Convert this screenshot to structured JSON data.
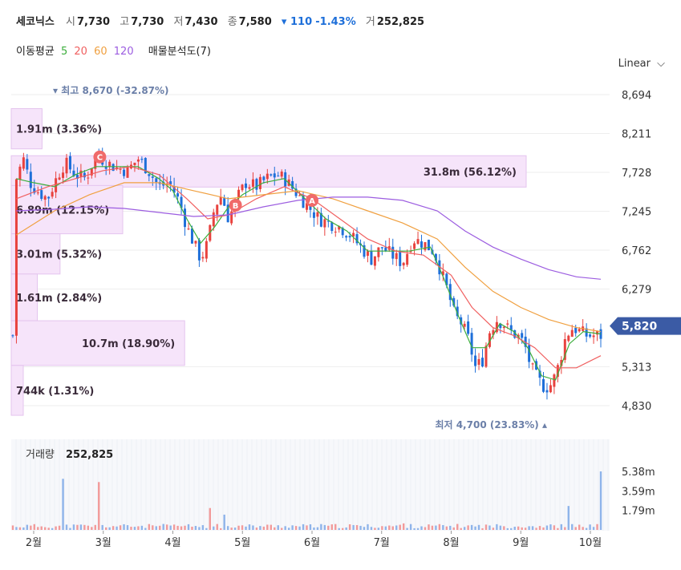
{
  "stock": {
    "name": "세코닉스",
    "open_label": "시",
    "open": "7,730",
    "high_label": "고",
    "high": "7,730",
    "low_label": "저",
    "low": "7,430",
    "close_label": "종",
    "close": "7,580",
    "change": "▾ 110",
    "change_pct": "-1.43%",
    "volume_label": "거",
    "volume": "252,825"
  },
  "indicators": {
    "ma_label": "이동평균",
    "ma5": "5",
    "ma20": "20",
    "ma60": "60",
    "ma120": "120",
    "profile_label": "매물분석도(7)"
  },
  "scale_button": "Linear",
  "colors": {
    "up": "#e8423e",
    "down": "#1e6fd9",
    "ma5": "#3cae3c",
    "ma20": "#f06060",
    "ma60": "#f0a040",
    "ma120": "#9c5de0",
    "profile": "#f6e4fa",
    "price_tag": "#3b5ba5"
  },
  "chart_data": {
    "type": "candlestick",
    "price_axis": {
      "ticks": [
        8694,
        8211,
        7728,
        7245,
        6762,
        6279,
        5313,
        4830
      ],
      "tick_labels": [
        "8,694",
        "8,211",
        "7,728",
        "7,245",
        "6,762",
        "6,279",
        "5,313",
        "4,830"
      ]
    },
    "current_price": {
      "value": 5820,
      "label": "5,820"
    },
    "high_annotation": "▾ 최고 8,670 (-32.87%)",
    "low_annotation": "최저 4,700 (23.83%) ▴",
    "markers": [
      {
        "label": "C",
        "x": 2.95,
        "price": 7920
      },
      {
        "label": "B",
        "x": 4.9,
        "price": 7320
      },
      {
        "label": "A",
        "x": 6.0,
        "price": 7380
      }
    ],
    "volume_profile": [
      {
        "price_low": 8020,
        "price_high": 8520,
        "volume": "1.91m",
        "pct": 3.36
      },
      {
        "price_low": 7545,
        "price_high": 7935,
        "volume": "31.8m",
        "pct": 56.12
      },
      {
        "price_low": 6965,
        "price_high": 7565,
        "volume": "6.89m",
        "pct": 12.15
      },
      {
        "price_low": 6465,
        "price_high": 6965,
        "volume": "3.01m",
        "pct": 5.32
      },
      {
        "price_low": 5885,
        "price_high": 6465,
        "volume": "1.61m",
        "pct": 2.84
      },
      {
        "price_low": 5330,
        "price_high": 5885,
        "volume": "10.7m",
        "pct": 18.9
      },
      {
        "price_low": 4710,
        "price_high": 5330,
        "volume": "744k",
        "pct": 1.31
      }
    ],
    "months": [
      "2월",
      "3월",
      "4월",
      "5월",
      "6월",
      "7월",
      "8월",
      "9월",
      "10월"
    ],
    "volume_panel": {
      "label": "거래량",
      "value": "252,825",
      "ticks": [
        1.79,
        3.59,
        5.38
      ],
      "tick_labels": [
        "1.79m",
        "3.59m",
        "5.38m"
      ]
    },
    "x_range": [
      1.7,
      10.4
    ],
    "y_range": [
      4700,
      8800
    ],
    "price_path": [
      [
        1.75,
        7650
      ],
      [
        1.85,
        7900
      ],
      [
        1.95,
        7600
      ],
      [
        2.05,
        7500
      ],
      [
        2.2,
        7400
      ],
      [
        2.35,
        7700
      ],
      [
        2.45,
        7850
      ],
      [
        2.6,
        7700
      ],
      [
        2.75,
        7650
      ],
      [
        2.9,
        7950
      ],
      [
        3.05,
        7850
      ],
      [
        3.2,
        7780
      ],
      [
        3.35,
        7750
      ],
      [
        3.5,
        7900
      ],
      [
        3.65,
        7750
      ],
      [
        3.8,
        7550
      ],
      [
        3.95,
        7600
      ],
      [
        4.1,
        7350
      ],
      [
        4.2,
        7050
      ],
      [
        4.3,
        6850
      ],
      [
        4.4,
        6650
      ],
      [
        4.5,
        6850
      ],
      [
        4.6,
        7300
      ],
      [
        4.7,
        7450
      ],
      [
        4.8,
        7150
      ],
      [
        4.95,
        7450
      ],
      [
        5.05,
        7600
      ],
      [
        5.2,
        7550
      ],
      [
        5.35,
        7650
      ],
      [
        5.5,
        7700
      ],
      [
        5.6,
        7650
      ],
      [
        5.7,
        7550
      ],
      [
        5.8,
        7450
      ],
      [
        5.95,
        7300
      ],
      [
        6.1,
        7150
      ],
      [
        6.25,
        7100
      ],
      [
        6.4,
        7050
      ],
      [
        6.55,
        6950
      ],
      [
        6.7,
        6800
      ],
      [
        6.85,
        6650
      ],
      [
        7.0,
        6800
      ],
      [
        7.15,
        6700
      ],
      [
        7.3,
        6600
      ],
      [
        7.45,
        6900
      ],
      [
        7.6,
        6850
      ],
      [
        7.75,
        6750
      ],
      [
        7.85,
        6500
      ],
      [
        7.95,
        6250
      ],
      [
        8.05,
        5950
      ],
      [
        8.15,
        5850
      ],
      [
        8.25,
        5650
      ],
      [
        8.35,
        5300
      ],
      [
        8.45,
        5400
      ],
      [
        8.55,
        5750
      ],
      [
        8.65,
        5900
      ],
      [
        8.75,
        5850
      ],
      [
        8.85,
        5750
      ],
      [
        8.95,
        5700
      ],
      [
        9.05,
        5600
      ],
      [
        9.15,
        5300
      ],
      [
        9.25,
        5150
      ],
      [
        9.35,
        5050
      ],
      [
        9.45,
        5100
      ],
      [
        9.55,
        5350
      ],
      [
        9.65,
        5700
      ],
      [
        9.75,
        5800
      ],
      [
        9.85,
        5750
      ],
      [
        9.95,
        5700
      ],
      [
        10.15,
        5700
      ]
    ],
    "ma5": [
      [
        1.75,
        7650
      ],
      [
        2.0,
        7600
      ],
      [
        2.3,
        7550
      ],
      [
        2.6,
        7700
      ],
      [
        2.9,
        7800
      ],
      [
        3.2,
        7800
      ],
      [
        3.5,
        7800
      ],
      [
        3.8,
        7650
      ],
      [
        4.0,
        7500
      ],
      [
        4.2,
        7150
      ],
      [
        4.4,
        6850
      ],
      [
        4.6,
        7050
      ],
      [
        4.8,
        7300
      ],
      [
        5.0,
        7450
      ],
      [
        5.3,
        7600
      ],
      [
        5.6,
        7650
      ],
      [
        5.9,
        7400
      ],
      [
        6.2,
        7150
      ],
      [
        6.5,
        7000
      ],
      [
        6.8,
        6750
      ],
      [
        7.1,
        6750
      ],
      [
        7.4,
        6750
      ],
      [
        7.7,
        6800
      ],
      [
        7.9,
        6400
      ],
      [
        8.1,
        5950
      ],
      [
        8.3,
        5550
      ],
      [
        8.5,
        5550
      ],
      [
        8.7,
        5850
      ],
      [
        8.9,
        5750
      ],
      [
        9.1,
        5550
      ],
      [
        9.3,
        5200
      ],
      [
        9.5,
        5150
      ],
      [
        9.7,
        5600
      ],
      [
        9.9,
        5750
      ],
      [
        10.15,
        5720
      ]
    ],
    "ma20": [
      [
        1.75,
        7400
      ],
      [
        2.2,
        7550
      ],
      [
        2.6,
        7650
      ],
      [
        3.0,
        7750
      ],
      [
        3.4,
        7800
      ],
      [
        3.8,
        7700
      ],
      [
        4.2,
        7400
      ],
      [
        4.5,
        7150
      ],
      [
        4.8,
        7200
      ],
      [
        5.2,
        7400
      ],
      [
        5.6,
        7550
      ],
      [
        6.0,
        7400
      ],
      [
        6.4,
        7150
      ],
      [
        6.8,
        6900
      ],
      [
        7.2,
        6750
      ],
      [
        7.6,
        6700
      ],
      [
        8.0,
        6450
      ],
      [
        8.3,
        6050
      ],
      [
        8.6,
        5800
      ],
      [
        8.9,
        5700
      ],
      [
        9.2,
        5550
      ],
      [
        9.5,
        5300
      ],
      [
        9.8,
        5300
      ],
      [
        10.15,
        5450
      ]
    ],
    "ma60": [
      [
        1.75,
        6950
      ],
      [
        2.3,
        7250
      ],
      [
        2.8,
        7450
      ],
      [
        3.3,
        7600
      ],
      [
        3.8,
        7600
      ],
      [
        4.3,
        7500
      ],
      [
        4.8,
        7400
      ],
      [
        5.3,
        7450
      ],
      [
        5.8,
        7500
      ],
      [
        6.3,
        7400
      ],
      [
        6.8,
        7250
      ],
      [
        7.3,
        7100
      ],
      [
        7.8,
        6900
      ],
      [
        8.2,
        6550
      ],
      [
        8.6,
        6250
      ],
      [
        9.0,
        6050
      ],
      [
        9.4,
        5900
      ],
      [
        9.8,
        5800
      ],
      [
        10.15,
        5750
      ]
    ],
    "ma120": [
      [
        1.75,
        7250
      ],
      [
        2.3,
        7270
      ],
      [
        2.8,
        7300
      ],
      [
        3.3,
        7280
      ],
      [
        3.8,
        7230
      ],
      [
        4.3,
        7180
      ],
      [
        4.8,
        7200
      ],
      [
        5.3,
        7300
      ],
      [
        5.8,
        7380
      ],
      [
        6.3,
        7420
      ],
      [
        6.8,
        7420
      ],
      [
        7.3,
        7380
      ],
      [
        7.8,
        7250
      ],
      [
        8.2,
        7000
      ],
      [
        8.6,
        6800
      ],
      [
        9.0,
        6650
      ],
      [
        9.4,
        6520
      ],
      [
        9.8,
        6430
      ],
      [
        10.15,
        6400
      ]
    ]
  }
}
